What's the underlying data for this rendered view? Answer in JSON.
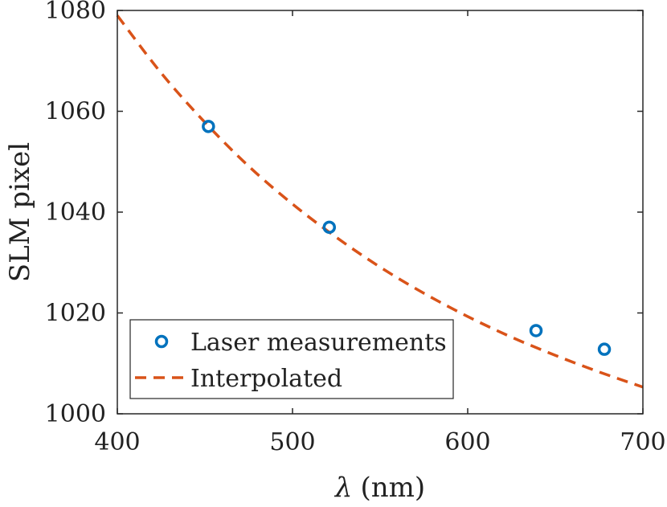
{
  "chart_data": {
    "type": "scatter",
    "title": "",
    "xlabel_symbol": "λ",
    "xlabel_unit": "(nm)",
    "ylabel": "SLM pixel",
    "xlim": [
      400,
      700
    ],
    "ylim": [
      1000,
      1080
    ],
    "xticks": [
      400,
      500,
      600,
      700
    ],
    "yticks": [
      1000,
      1020,
      1040,
      1060,
      1080
    ],
    "grid": false,
    "legend_position": "bottom-left",
    "series": [
      {
        "name": "Laser measurements",
        "kind": "markers",
        "color": "#0072BD",
        "x": [
          452,
          521,
          639,
          678
        ],
        "y": [
          1057,
          1037,
          1016.5,
          1012.8
        ]
      },
      {
        "name": "Interpolated",
        "kind": "dashed-line",
        "color": "#D95319",
        "x": [
          400,
          425,
          450,
          475,
          500,
          525,
          550,
          575,
          600,
          625,
          650,
          675,
          700
        ],
        "y": [
          1079,
          1067.6,
          1057.8,
          1049.1,
          1041.6,
          1035.0,
          1029.1,
          1023.9,
          1019.3,
          1015.2,
          1011.6,
          1008.3,
          1005.3
        ]
      }
    ]
  }
}
